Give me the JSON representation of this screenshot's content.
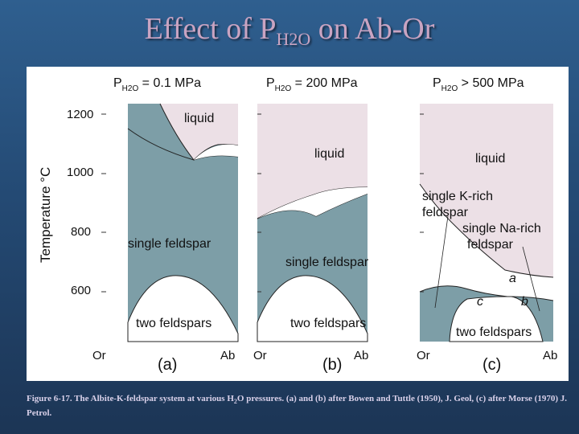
{
  "slide": {
    "title_prefix": "Effect of P",
    "title_sub": "H2O",
    "title_suffix": " on Ab-Or"
  },
  "figure": {
    "y_axis_label": "Temperature  °C",
    "y_ticks": [
      "1200",
      "1000",
      "800",
      "600"
    ],
    "panels": [
      {
        "title_p": "P",
        "title_sub": "H2O",
        "title_rest": " = 0.1 MPa",
        "tag": "(a)",
        "left_end": "Or",
        "right_end": "Ab",
        "regions": [
          "liquid",
          "single feldspar",
          "two feldspars"
        ]
      },
      {
        "title_p": "P",
        "title_sub": "H2O",
        "title_rest": " = 200 MPa",
        "tag": "(b)",
        "left_end": "Or",
        "right_end": "Ab",
        "regions": [
          "liquid",
          "single feldspar",
          "two feldspars"
        ]
      },
      {
        "title_p": "P",
        "title_sub": "H2O",
        "title_rest": " > 500 MPa",
        "tag": "(c)",
        "left_end": "Or",
        "right_end": "Ab",
        "regions": [
          "liquid",
          "single K-rich",
          "feldspar",
          "single Na-rich",
          "feldspar",
          "two feldspars"
        ],
        "point_labels": [
          "a",
          "b",
          "c"
        ]
      }
    ]
  },
  "caption": {
    "part1": "Figure 6-17. The Albite-K-feldspar system at various H",
    "sub": "2",
    "part2": "O pressures. (a) and (b) after Bowen and Tuttle (1950), J. Geol, (c) after Morse (1970) J. Petrol."
  },
  "colors": {
    "liquid_fill": "#ece0e6",
    "feldspar_fill": "#7d9ea7",
    "two_feldspar_fill": "#ffffff",
    "title_color": "#c9a4c2"
  }
}
